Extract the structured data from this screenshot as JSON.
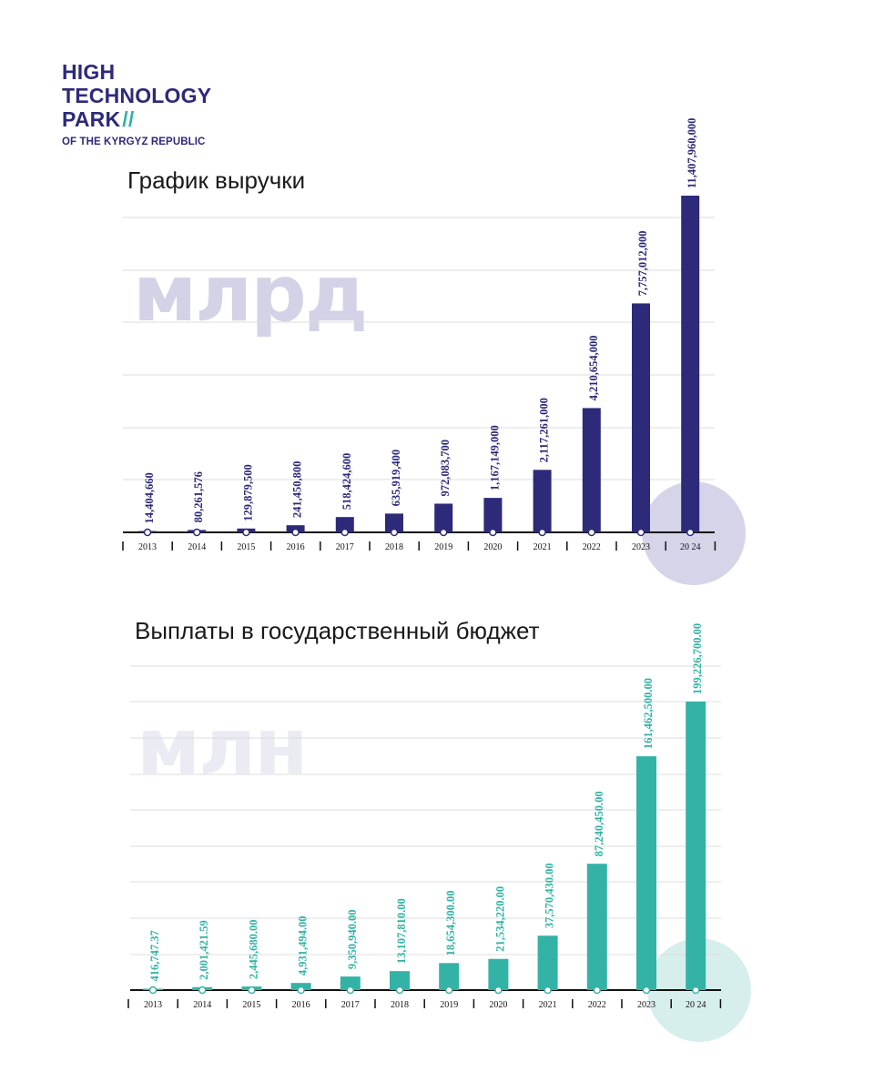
{
  "logo": {
    "line1": "HIGH",
    "line2": "TECHNOLOGY",
    "line3": "PARK",
    "slashes": "//",
    "line4": "OF THE KYRGYZ REPUBLIC"
  },
  "colors": {
    "brand_navy": "#2d2a7a",
    "brand_teal": "#2fb3a6",
    "revenue_bar": "#2d2a7a",
    "budget_bar": "#33b3a6"
  },
  "chart_data": [
    {
      "type": "bar",
      "title": "График выручки",
      "unit_watermark": "млрд",
      "categories": [
        "2013",
        "2014",
        "2015",
        "2016",
        "2017",
        "2018",
        "2019",
        "2020",
        "2021",
        "2022",
        "2023",
        "20 24"
      ],
      "values": [
        14404660,
        80261576,
        129879500,
        241450800,
        518424600,
        635919400,
        972083700,
        1167149000,
        2117261000,
        4210654000,
        7757012000,
        11407960000
      ],
      "value_labels": [
        "14,404,660",
        "80,261,576",
        "129,879,500",
        "241,450,800",
        "518,424,600",
        "635,919,400",
        "972,083,700",
        "1,167,149,000",
        "2,117,261,000",
        "4,210,654,000",
        "7,757,012,000",
        "11,407,960,000"
      ],
      "ylim": [
        0,
        12000000000
      ],
      "grid": true,
      "color": "#2d2a7a"
    },
    {
      "type": "bar",
      "title": "Выплаты в государственный бюджет",
      "unit_watermark": "млн",
      "categories": [
        "2013",
        "2014",
        "2015",
        "2016",
        "2017",
        "2018",
        "2019",
        "2020",
        "2021",
        "2022",
        "2023",
        "20 24"
      ],
      "values": [
        416747.37,
        2001421.59,
        2445680.0,
        4931494.0,
        9350940.0,
        13107810.0,
        18654300.0,
        21534220.0,
        37570430.0,
        87240450.0,
        161462500.0,
        199226700.0
      ],
      "value_labels": [
        "416,747.37",
        "2,001,421.59",
        "2,445,680.00",
        "4,931,494.00",
        "9,350,940.00",
        "13,107,810.00",
        "18,654,300.00",
        "21,534,220.00",
        "37,570,430.00",
        "87,240,450.00",
        "161,462,500.00",
        "199,226,700.00"
      ],
      "ylim": [
        0,
        220000000
      ],
      "grid": true,
      "color": "#33b3a6"
    }
  ]
}
